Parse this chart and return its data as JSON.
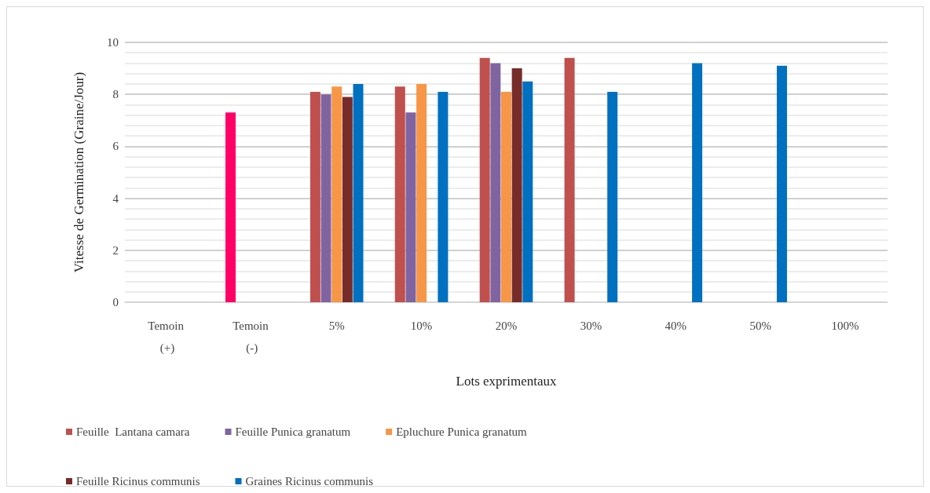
{
  "chart_data": {
    "type": "bar",
    "xlabel": "Lots exprimentaux",
    "ylabel": "Vitesse de Germination (Graine/Jour)",
    "categories": [
      "Temoin (+)",
      "Temoin (-)",
      "5%",
      "10%",
      "20%",
      "30%",
      "40%",
      "50%",
      "100%"
    ],
    "series": [
      {
        "name": "Feuille  Lantana camara",
        "color": "#c0504d",
        "colors": [
          "#c0504d",
          "#ff0066",
          "#c0504d",
          "#c0504d",
          "#c0504d",
          "#c0504d",
          "#c0504d",
          "#c0504d",
          "#c0504d"
        ],
        "values": [
          0,
          7.3,
          8.1,
          8.3,
          9.4,
          9.4,
          0,
          0,
          0
        ]
      },
      {
        "name": "Feuille Punica granatum",
        "color": "#8064a2",
        "values": [
          null,
          null,
          8.0,
          7.3,
          9.2,
          0,
          0,
          0,
          0
        ]
      },
      {
        "name": "Epluchure Punica granatum",
        "color": "#f79646",
        "values": [
          null,
          null,
          8.3,
          8.4,
          8.1,
          0,
          0,
          0,
          0
        ]
      },
      {
        "name": "Feuille Ricinus communis",
        "color": "#772c2a",
        "values": [
          null,
          null,
          7.9,
          0,
          9.0,
          0,
          0,
          0,
          0
        ]
      },
      {
        "name": "Graines Ricinus communis",
        "color": "#0070c0",
        "values": [
          null,
          null,
          8.4,
          8.1,
          8.5,
          8.1,
          9.2,
          9.1,
          0
        ]
      }
    ],
    "ylim": [
      0,
      10
    ],
    "yticks": [
      0,
      2,
      4,
      6,
      8,
      10
    ],
    "grid": "y",
    "legend": "bottom"
  }
}
